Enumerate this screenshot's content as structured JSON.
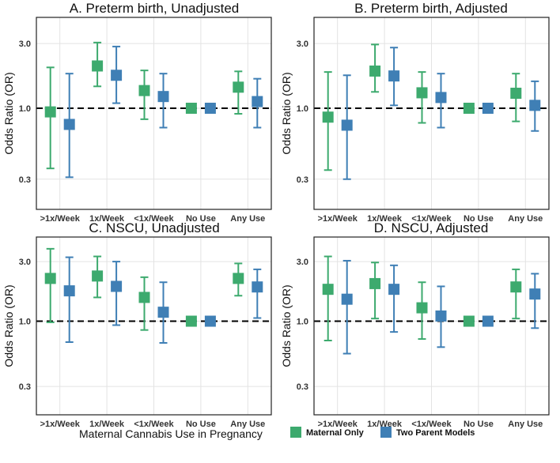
{
  "chart_data": [
    {
      "type": "scatter",
      "title": "A. Preterm birth, Unadjusted",
      "ylabel": "Odds Ratio (OR)",
      "categories": [
        ">1x/Week",
        "1x/Week",
        "<1x/Week",
        "No Use",
        "Any Use"
      ],
      "yscale": "log",
      "ylim": [
        0.2,
        4.2
      ],
      "yticks": [
        "0.3",
        "1.0",
        "3.0"
      ],
      "reference_line": 1.0,
      "series": [
        {
          "name": "Maternal Only",
          "color": "#3daa6e",
          "values": [
            0.94,
            2.05,
            1.35,
            1.0,
            1.43
          ],
          "lower": [
            0.36,
            1.45,
            0.83,
            1.0,
            0.91
          ],
          "upper": [
            2.0,
            3.05,
            1.9,
            1.0,
            1.87
          ]
        },
        {
          "name": "Two Parent Models",
          "color": "#3f7fb5",
          "values": [
            0.76,
            1.75,
            1.22,
            1.0,
            1.12
          ],
          "lower": [
            0.31,
            1.09,
            0.72,
            1.0,
            0.72
          ],
          "upper": [
            1.8,
            2.85,
            1.8,
            1.0,
            1.65
          ]
        }
      ]
    },
    {
      "type": "scatter",
      "title": "B. Preterm birth, Adjusted",
      "ylabel": "Odds Ratio (OR)",
      "categories": [
        ">1x/Week",
        "1x/Week",
        "<1x/Week",
        "No Use",
        "Any Use"
      ],
      "yscale": "log",
      "ylim": [
        0.2,
        4.2
      ],
      "yticks": [
        "0.3",
        "1.0",
        "3.0"
      ],
      "reference_line": 1.0,
      "series": [
        {
          "name": "Maternal Only",
          "color": "#3daa6e",
          "values": [
            0.86,
            1.88,
            1.3,
            1.0,
            1.29
          ],
          "lower": [
            0.35,
            1.32,
            0.78,
            1.0,
            0.8
          ],
          "upper": [
            1.85,
            2.95,
            1.85,
            1.0,
            1.8
          ]
        },
        {
          "name": "Two Parent Models",
          "color": "#3f7fb5",
          "values": [
            0.75,
            1.73,
            1.2,
            1.0,
            1.05
          ],
          "lower": [
            0.3,
            1.05,
            0.72,
            1.0,
            0.68
          ],
          "upper": [
            1.75,
            2.8,
            1.8,
            1.0,
            1.58
          ]
        }
      ]
    },
    {
      "type": "scatter",
      "title": "C. NSCU, Unadjusted",
      "ylabel": "Odds Ratio (OR)",
      "categories": [
        ">1x/Week",
        "1x/Week",
        "<1x/Week",
        "No Use",
        "Any Use"
      ],
      "yscale": "log",
      "ylim": [
        0.2,
        4.2
      ],
      "yticks": [
        "0.3",
        "1.0",
        "3.0"
      ],
      "reference_line": 1.0,
      "series": [
        {
          "name": "Maternal Only",
          "color": "#3daa6e",
          "values": [
            2.2,
            2.3,
            1.55,
            1.0,
            2.2
          ],
          "lower": [
            0.98,
            1.55,
            0.85,
            1.0,
            1.6
          ],
          "upper": [
            3.8,
            3.3,
            2.25,
            1.0,
            2.9
          ]
        },
        {
          "name": "Two Parent Models",
          "color": "#3f7fb5",
          "values": [
            1.75,
            1.9,
            1.18,
            1.0,
            1.88
          ],
          "lower": [
            0.68,
            0.93,
            0.67,
            1.0,
            1.06
          ],
          "upper": [
            3.25,
            3.0,
            2.05,
            1.0,
            2.6
          ]
        }
      ]
    },
    {
      "type": "scatter",
      "title": "D. NSCU, Adjusted",
      "ylabel": "Odds Ratio (OR)",
      "categories": [
        ">1x/Week",
        "1x/Week",
        "<1x/Week",
        "No Use",
        "Any Use"
      ],
      "yscale": "log",
      "ylim": [
        0.2,
        4.2
      ],
      "yticks": [
        "0.3",
        "1.0",
        "3.0"
      ],
      "reference_line": 1.0,
      "series": [
        {
          "name": "Maternal Only",
          "color": "#3daa6e",
          "values": [
            1.8,
            2.0,
            1.28,
            1.0,
            1.88
          ],
          "lower": [
            0.7,
            1.05,
            0.72,
            1.0,
            1.05
          ],
          "upper": [
            3.3,
            2.95,
            2.05,
            1.0,
            2.6
          ]
        },
        {
          "name": "Two Parent Models",
          "color": "#3f7fb5",
          "values": [
            1.5,
            1.8,
            1.1,
            1.0,
            1.65
          ],
          "lower": [
            0.55,
            0.82,
            0.62,
            1.0,
            0.88
          ],
          "upper": [
            3.05,
            2.8,
            1.9,
            1.0,
            2.4
          ]
        }
      ]
    }
  ],
  "legend": {
    "title": "Maternal Cannabis Use in Pregnancy",
    "items": [
      {
        "name": "Maternal Only",
        "color": "#3daa6e"
      },
      {
        "name": "Two Parent Models",
        "color": "#3f7fb5"
      }
    ]
  }
}
